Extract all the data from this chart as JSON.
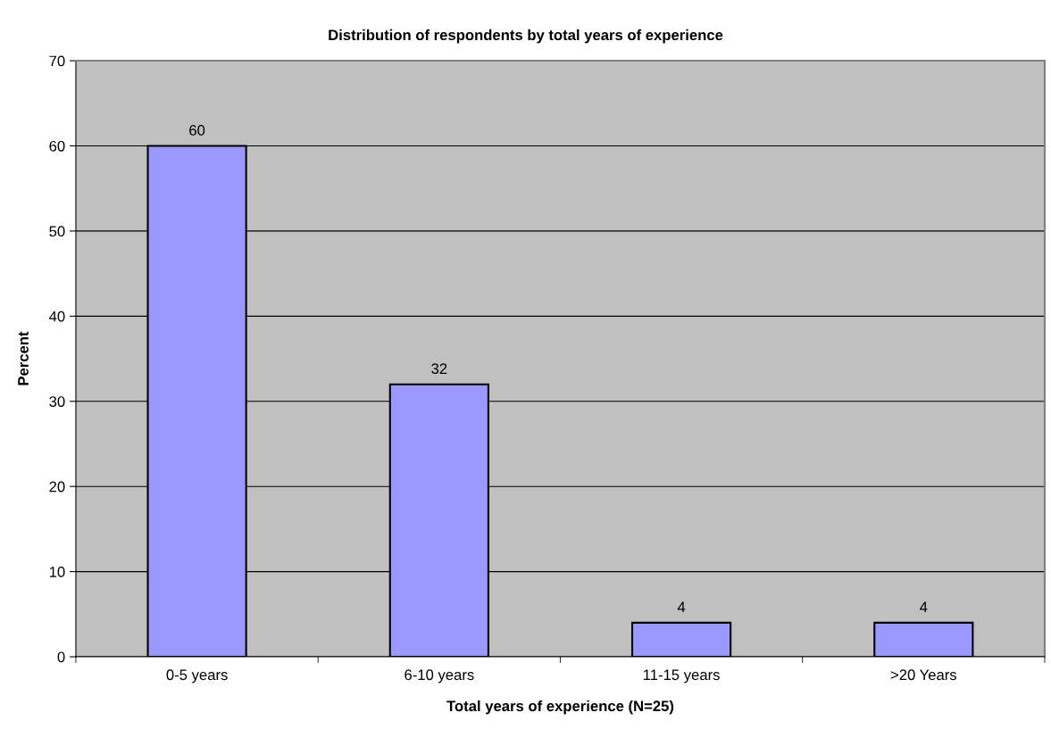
{
  "chart_data": {
    "type": "bar",
    "title": "Distribution of respondents by total years of experience",
    "xlabel": "Total years of experience (N=25)",
    "ylabel": "Percent",
    "categories": [
      "0-5 years",
      "6-10 years",
      "11-15 years",
      ">20 Years"
    ],
    "values": [
      60,
      32,
      4,
      4
    ],
    "color": "#9999ff",
    "ylim": [
      0,
      70
    ],
    "yticks": [
      0,
      10,
      20,
      30,
      40,
      50,
      60,
      70
    ],
    "grid": "y",
    "data_labels": true,
    "legend": false
  }
}
